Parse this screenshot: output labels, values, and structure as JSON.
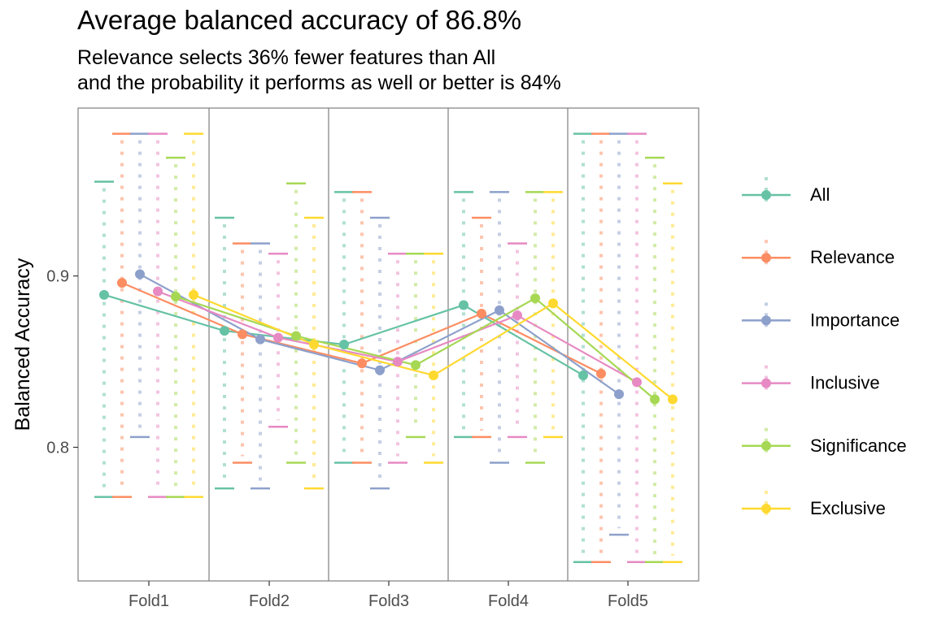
{
  "title": "Average balanced accuracy of 86.8%",
  "subtitle": {
    "line1": "Relevance selects 36% fewer features than All",
    "line2": "and the probability it performs as well or better is 84%"
  },
  "chart_data": {
    "type": "line",
    "title": "Average balanced accuracy of 86.8%",
    "ylabel": "Balanced Accuracy",
    "xlabel": "",
    "categories": [
      "Fold1",
      "Fold2",
      "Fold3",
      "Fold4",
      "Fold5"
    ],
    "yticks": [
      0.8,
      0.9
    ],
    "ytick_labels": [
      "0.8",
      "0.9"
    ],
    "ylim": [
      0.722,
      0.998
    ],
    "grid": false,
    "legend_position": "right",
    "series": [
      {
        "name": "All",
        "color": "#66C2A5",
        "means": [
          0.889,
          0.868,
          0.86,
          0.883,
          0.842
        ],
        "max": [
          0.955,
          0.934,
          0.949,
          0.949,
          0.983
        ],
        "min": [
          0.771,
          0.776,
          0.791,
          0.806,
          0.733
        ]
      },
      {
        "name": "Relevance",
        "color": "#FC8D62",
        "means": [
          0.896,
          0.866,
          0.849,
          0.878,
          0.843
        ],
        "max": [
          0.983,
          0.919,
          0.949,
          0.934,
          0.983
        ],
        "min": [
          0.771,
          0.791,
          0.791,
          0.806,
          0.733
        ]
      },
      {
        "name": "Importance",
        "color": "#8DA0CB",
        "means": [
          0.901,
          0.863,
          0.845,
          0.88,
          0.831
        ],
        "max": [
          0.983,
          0.919,
          0.934,
          0.949,
          0.983
        ],
        "min": [
          0.806,
          0.776,
          0.776,
          0.791,
          0.749
        ]
      },
      {
        "name": "Inclusive",
        "color": "#E78AC3",
        "means": [
          0.891,
          0.864,
          0.85,
          0.877,
          0.838
        ],
        "max": [
          0.983,
          0.913,
          0.913,
          0.919,
          0.983
        ],
        "min": [
          0.771,
          0.812,
          0.791,
          0.806,
          0.733
        ]
      },
      {
        "name": "Significance",
        "color": "#A6D854",
        "means": [
          0.888,
          0.865,
          0.848,
          0.887,
          0.828
        ],
        "max": [
          0.969,
          0.954,
          0.913,
          0.949,
          0.969
        ],
        "min": [
          0.771,
          0.791,
          0.806,
          0.791,
          0.733
        ]
      },
      {
        "name": "Exclusive",
        "color": "#FFD92F",
        "means": [
          0.889,
          0.86,
          0.842,
          0.884,
          0.828
        ],
        "max": [
          0.983,
          0.934,
          0.913,
          0.949,
          0.954
        ],
        "min": [
          0.771,
          0.776,
          0.791,
          0.806,
          0.733
        ]
      }
    ]
  }
}
